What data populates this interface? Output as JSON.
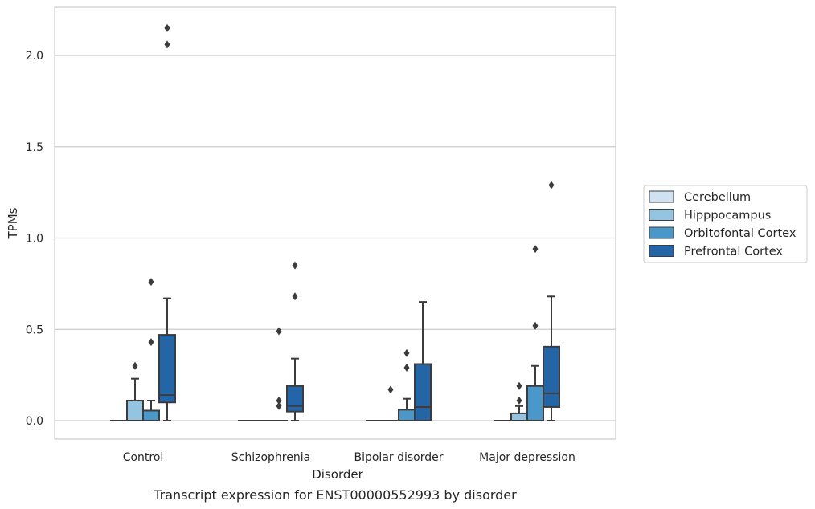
{
  "chart_data": {
    "type": "box",
    "caption": "Transcript expression for ENST00000552993 by disorder",
    "xlabel": "Disorder",
    "ylabel": "TPMs",
    "ylim": [
      -0.1,
      2.27
    ],
    "yticks": [
      0.0,
      0.5,
      1.0,
      1.5,
      2.0
    ],
    "ytick_labels": [
      "0.0",
      "0.5",
      "1.0",
      "1.5",
      "2.0"
    ],
    "grid": "horizontal",
    "legend_position": "right",
    "categories": [
      "Control",
      "Schizophrenia",
      "Bipolar disorder",
      "Major depression"
    ],
    "series": [
      {
        "name": "Cerebellum",
        "color": "#d0e1f2",
        "boxes": [
          {
            "min": 0,
            "q1": 0,
            "median": 0,
            "q3": 0,
            "max": 0,
            "outliers": []
          },
          {
            "min": 0,
            "q1": 0,
            "median": 0,
            "q3": 0,
            "max": 0,
            "outliers": []
          },
          {
            "min": 0,
            "q1": 0,
            "median": 0,
            "q3": 0,
            "max": 0,
            "outliers": []
          },
          {
            "min": 0,
            "q1": 0,
            "median": 0,
            "q3": 0,
            "max": 0,
            "outliers": []
          }
        ]
      },
      {
        "name": "Hipppocampus",
        "color": "#94c4df",
        "boxes": [
          {
            "min": 0,
            "q1": 0,
            "median": 0,
            "q3": 0.11,
            "max": 0.23,
            "outliers": [
              0.3
            ]
          },
          {
            "min": 0,
            "q1": 0,
            "median": 0,
            "q3": 0,
            "max": 0,
            "outliers": []
          },
          {
            "min": 0,
            "q1": 0,
            "median": 0,
            "q3": 0,
            "max": 0,
            "outliers": [
              0.17
            ]
          },
          {
            "min": 0,
            "q1": 0,
            "median": 0,
            "q3": 0.04,
            "max": 0.08,
            "outliers": [
              0.11,
              0.19
            ]
          }
        ]
      },
      {
        "name": "Orbitofontal Cortex",
        "color": "#4a98c9",
        "boxes": [
          {
            "min": 0,
            "q1": 0,
            "median": 0,
            "q3": 0.055,
            "max": 0.11,
            "outliers": [
              0.43,
              0.76
            ]
          },
          {
            "min": 0,
            "q1": 0,
            "median": 0,
            "q3": 0,
            "max": 0,
            "outliers": [
              0.08,
              0.11,
              0.49
            ]
          },
          {
            "min": 0,
            "q1": 0,
            "median": 0,
            "q3": 0.06,
            "max": 0.12,
            "outliers": [
              0.29,
              0.37
            ]
          },
          {
            "min": 0,
            "q1": 0,
            "median": 0,
            "q3": 0.19,
            "max": 0.3,
            "outliers": [
              0.52,
              0.94
            ]
          }
        ]
      },
      {
        "name": "Prefrontal Cortex",
        "color": "#2465a8",
        "boxes": [
          {
            "min": 0,
            "q1": 0.1,
            "median": 0.14,
            "q3": 0.47,
            "max": 0.67,
            "outliers": [
              2.06,
              2.15
            ]
          },
          {
            "min": 0,
            "q1": 0.05,
            "median": 0.08,
            "q3": 0.19,
            "max": 0.34,
            "outliers": [
              0.68,
              0.85
            ]
          },
          {
            "min": 0,
            "q1": 0,
            "median": 0.075,
            "q3": 0.31,
            "max": 0.65,
            "outliers": []
          },
          {
            "min": 0,
            "q1": 0.075,
            "median": 0.15,
            "q3": 0.405,
            "max": 0.68,
            "outliers": [
              1.29
            ]
          }
        ]
      }
    ]
  }
}
